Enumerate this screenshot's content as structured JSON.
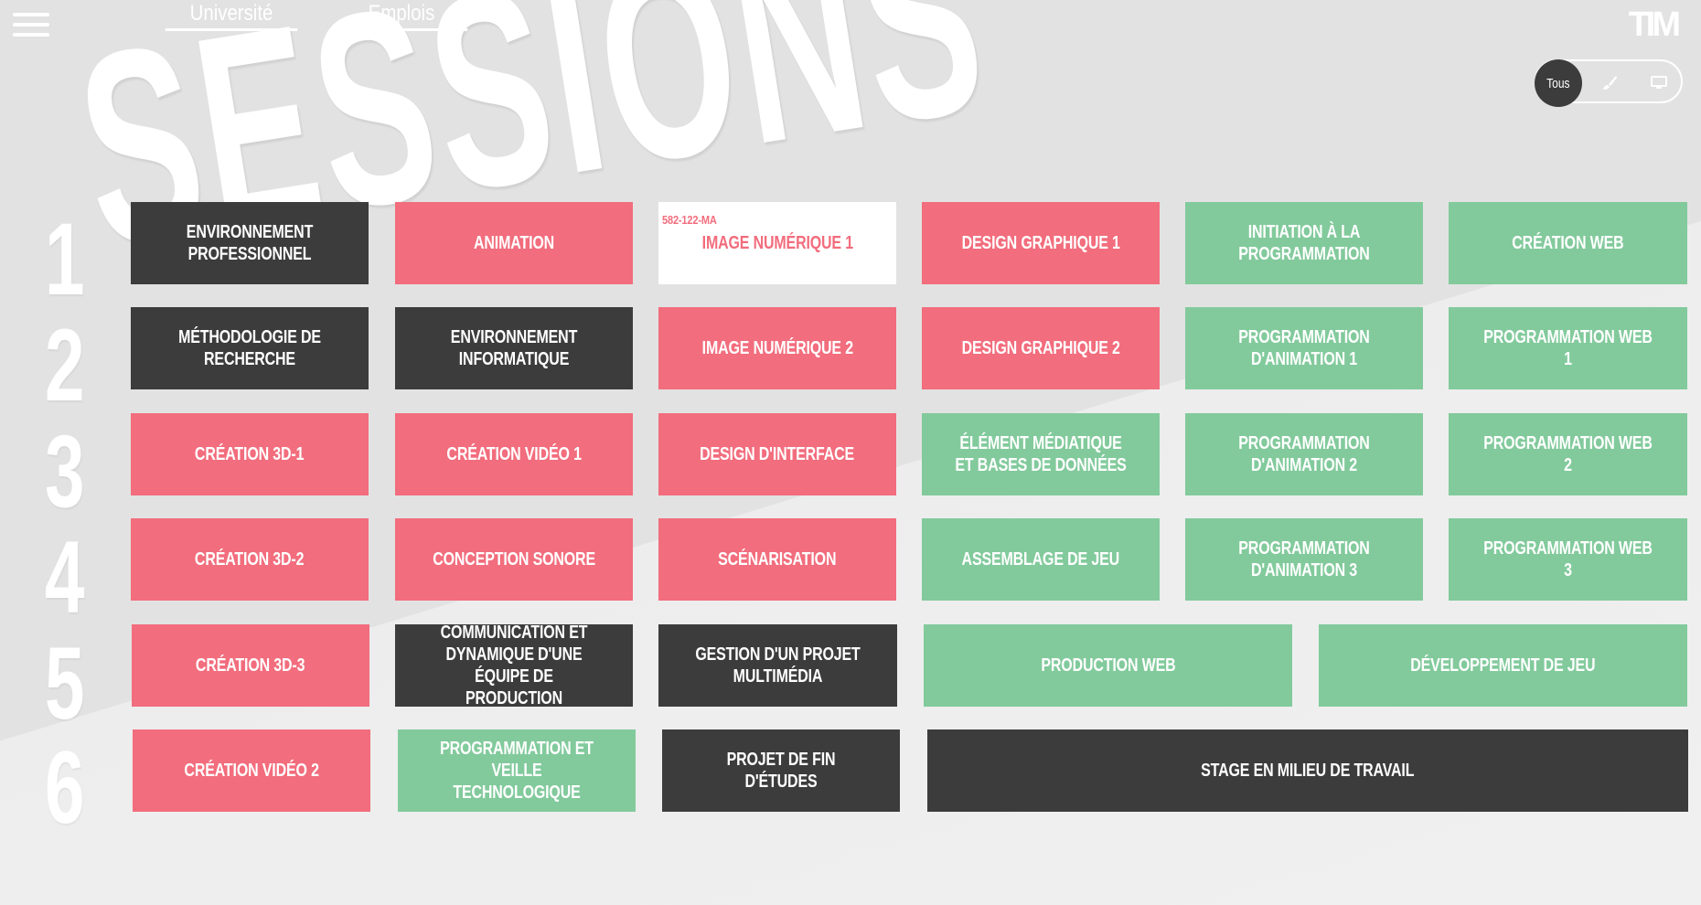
{
  "header": {
    "nav": [
      "Université",
      "Emplois"
    ],
    "logo": "TIM"
  },
  "background_word": "SESSIONS",
  "filter": {
    "options": [
      {
        "label": "Tous",
        "icon": "all-label",
        "active": true
      },
      {
        "label": "",
        "icon": "brush-icon",
        "active": false
      },
      {
        "label": "",
        "icon": "monitor-icon",
        "active": false
      }
    ]
  },
  "colors": {
    "dark": "#3c3c3c",
    "art": "#f26d7d",
    "programming": "#82ca9c",
    "highlight": "#ffffff"
  },
  "rows": [
    {
      "number": "1",
      "courses": [
        {
          "title": "ENVIRONNEMENT PROFESSIONNEL",
          "category": "dark"
        },
        {
          "title": "ANIMATION",
          "category": "art"
        },
        {
          "title": "IMAGE NUMÉRIQUE 1",
          "category": "art",
          "highlighted": true,
          "code": "582-122-MA"
        },
        {
          "title": "DESIGN GRAPHIQUE 1",
          "category": "art"
        },
        {
          "title": "INITIATION À LA PROGRAMMATION",
          "category": "programming"
        },
        {
          "title": "CRÉATION WEB",
          "category": "programming"
        }
      ]
    },
    {
      "number": "2",
      "courses": [
        {
          "title": "MÉTHODOLOGIE DE RECHERCHE",
          "category": "dark"
        },
        {
          "title": "ENVIRONNEMENT INFORMATIQUE",
          "category": "dark"
        },
        {
          "title": "IMAGE NUMÉRIQUE 2",
          "category": "art"
        },
        {
          "title": "DESIGN GRAPHIQUE 2",
          "category": "art"
        },
        {
          "title": "PROGRAMMATION D'ANIMATION 1",
          "category": "programming"
        },
        {
          "title": "PROGRAMMATION WEB 1",
          "category": "programming"
        }
      ]
    },
    {
      "number": "3",
      "courses": [
        {
          "title": "CRÉATION 3D-1",
          "category": "art"
        },
        {
          "title": "CRÉATION VIDÉO 1",
          "category": "art"
        },
        {
          "title": "DESIGN D'INTERFACE",
          "category": "art"
        },
        {
          "title": "ÉLÉMENT MÉDIATIQUE ET BASES DE DONNÉES",
          "category": "programming"
        },
        {
          "title": "PROGRAMMATION D'ANIMATION 2",
          "category": "programming"
        },
        {
          "title": "PROGRAMMATION WEB 2",
          "category": "programming"
        }
      ]
    },
    {
      "number": "4",
      "courses": [
        {
          "title": "CRÉATION 3D-2",
          "category": "art"
        },
        {
          "title": "CONCEPTION SONORE",
          "category": "art"
        },
        {
          "title": "SCÉNARISATION",
          "category": "art"
        },
        {
          "title": "ASSEMBLAGE DE JEU",
          "category": "programming"
        },
        {
          "title": "PROGRAMMATION D'ANIMATION 3",
          "category": "programming"
        },
        {
          "title": "PROGRAMMATION WEB 3",
          "category": "programming"
        }
      ]
    },
    {
      "number": "5",
      "courses": [
        {
          "title": "CRÉATION 3D-3",
          "category": "art"
        },
        {
          "title": "COMMUNICATION ET DYNAMIQUE D'UNE ÉQUIPE DE PRODUCTION",
          "category": "dark"
        },
        {
          "title": "GESTION D'UN PROJET MULTIMÉDIA",
          "category": "dark"
        },
        {
          "title": "PRODUCTION WEB",
          "category": "programming"
        },
        {
          "title": "DÉVELOPPEMENT DE JEU",
          "category": "programming"
        }
      ]
    },
    {
      "number": "6",
      "courses": [
        {
          "title": "CRÉATION VIDÉO 2",
          "category": "art"
        },
        {
          "title": "PROGRAMMATION ET VEILLE TECHNOLOGIQUE",
          "category": "programming"
        },
        {
          "title": "PROJET DE FIN D'ÉTUDES",
          "category": "dark"
        },
        {
          "title": "STAGE EN MILIEU DE TRAVAIL",
          "category": "dark"
        }
      ]
    }
  ]
}
